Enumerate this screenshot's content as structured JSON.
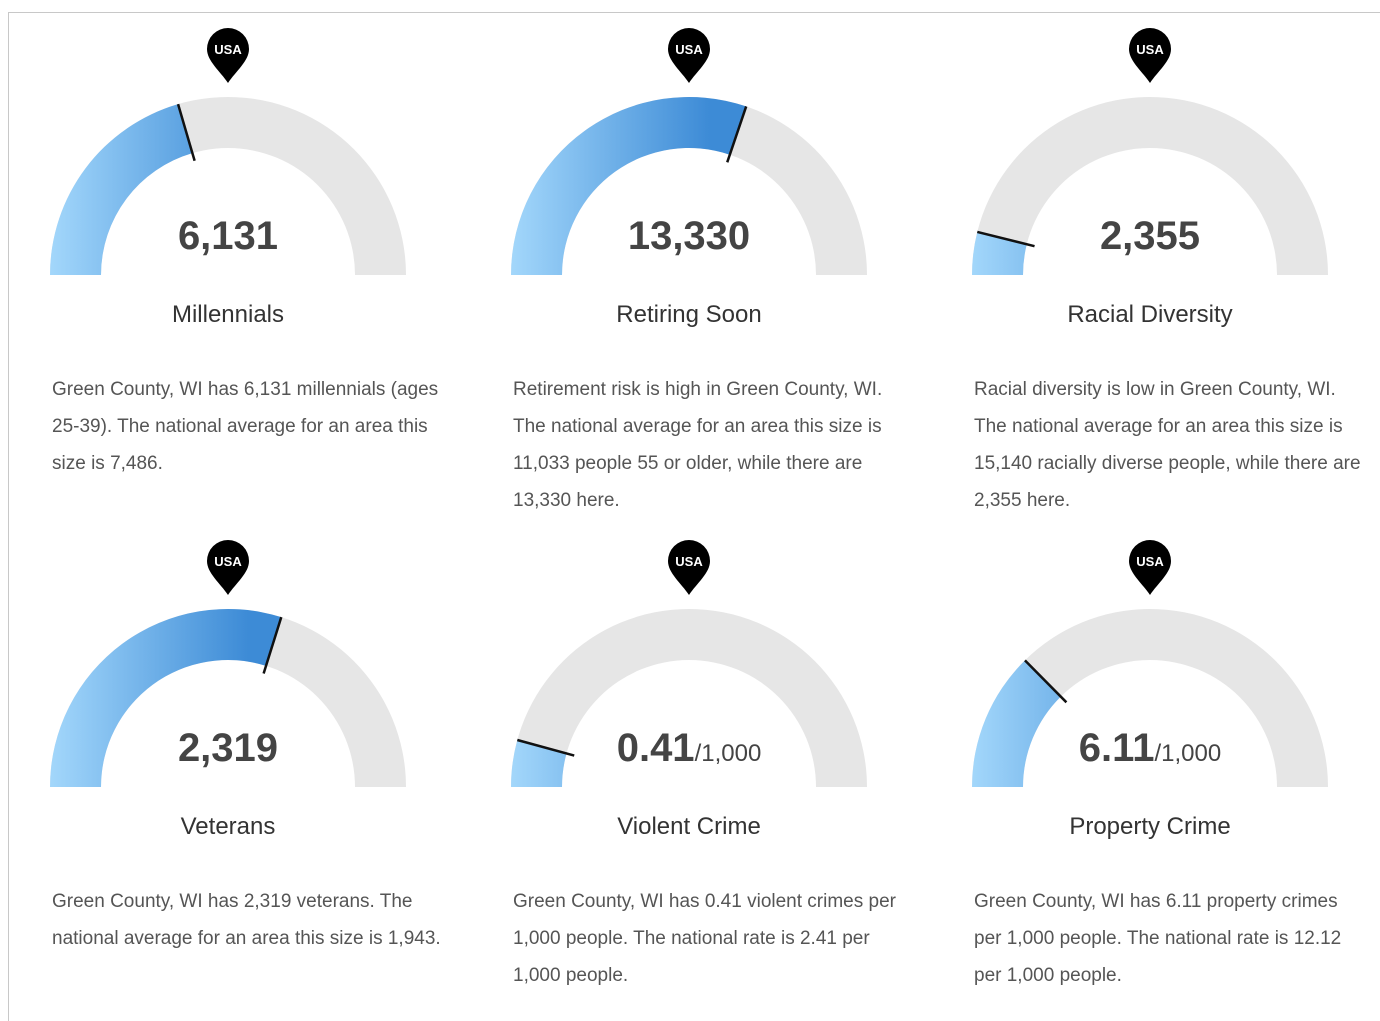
{
  "chart_data": [
    {
      "type": "gauge",
      "title": "Millennials",
      "value": 6131,
      "value_label": "6,131",
      "reference": 7486,
      "reference_label": "USA",
      "color": "#3d8bd6",
      "color_light": "#a3d7fb",
      "track_color": "#e6e6e6",
      "description": "Green County, WI has 6,131 millennials (ages 25-39). The national average for an area this size is 7,486."
    },
    {
      "type": "gauge",
      "title": "Retiring Soon",
      "value": 13330,
      "value_label": "13,330",
      "reference": 11033,
      "reference_label": "USA",
      "color": "#3d8bd6",
      "color_light": "#a3d7fb",
      "track_color": "#e6e6e6",
      "description": "Retirement risk is high in Green County, WI. The national average for an area this size is 11,033 people 55 or older, while there are 13,330 here."
    },
    {
      "type": "gauge",
      "title": "Racial Diversity",
      "value": 2355,
      "value_label": "2,355",
      "reference": 15140,
      "reference_label": "USA",
      "color": "#3d8bd6",
      "color_light": "#a3d7fb",
      "track_color": "#e6e6e6",
      "description": "Racial diversity is low in Green County, WI. The national average for an area this size is 15,140 racially diverse people, while there are 2,355 here."
    },
    {
      "type": "gauge",
      "title": "Veterans",
      "value": 2319,
      "value_label": "2,319",
      "reference": 1943,
      "reference_label": "USA",
      "color": "#3d8bd6",
      "color_light": "#a3d7fb",
      "track_color": "#e6e6e6",
      "description": "Green County, WI has 2,319 veterans. The national average for an area this size is 1,943."
    },
    {
      "type": "gauge",
      "title": "Violent Crime",
      "value": 0.41,
      "unit": "/1,000",
      "reference": 2.41,
      "reference_label": "USA",
      "color": "#3d8bd6",
      "color_light": "#a3d7fb",
      "track_color": "#e6e6e6",
      "description": "Green County, WI has 0.41 violent crimes per 1,000 people. The national rate is 2.41 per 1,000 people."
    },
    {
      "type": "gauge",
      "title": "Property Crime",
      "value": 6.11,
      "unit": "/1,000",
      "reference": 12.12,
      "reference_label": "USA",
      "color": "#3d8bd6",
      "color_light": "#a3d7fb",
      "track_color": "#e6e6e6",
      "description": "Green County, WI has 6.11 property crimes per 1,000 people. The national rate is 12.12 per 1,000 people."
    }
  ]
}
